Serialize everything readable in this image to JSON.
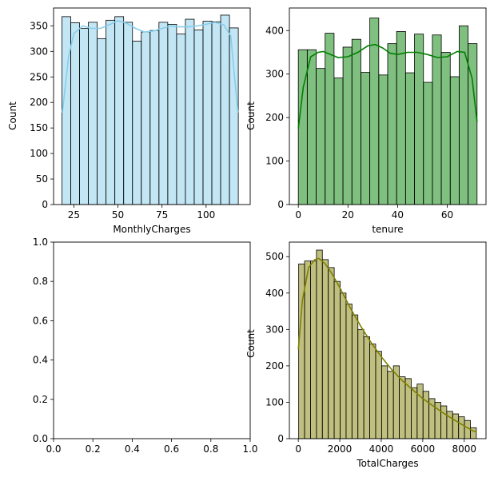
{
  "chart_data": [
    {
      "type": "histogram",
      "position": "top-left",
      "xlabel": "MonthlyCharges",
      "ylabel": "Count",
      "xlim": [
        13.5,
        125
      ],
      "ylim": [
        0,
        385
      ],
      "xticks": [
        25,
        50,
        75,
        100
      ],
      "yticks": [
        0,
        50,
        100,
        150,
        200,
        250,
        300,
        350
      ],
      "bin_start": 18.25,
      "bin_width": 5.0,
      "counts": [
        368,
        356,
        345,
        357,
        325,
        361,
        368,
        357,
        320,
        338,
        341,
        357,
        353,
        334,
        363,
        342,
        359,
        358,
        371,
        346
      ],
      "kde": [
        [
          18.5,
          180
        ],
        [
          22,
          290
        ],
        [
          25,
          335
        ],
        [
          30,
          350
        ],
        [
          35,
          345
        ],
        [
          40,
          345
        ],
        [
          45,
          352
        ],
        [
          50,
          360
        ],
        [
          55,
          355
        ],
        [
          60,
          345
        ],
        [
          65,
          338
        ],
        [
          70,
          340
        ],
        [
          75,
          345
        ],
        [
          80,
          350
        ],
        [
          85,
          348
        ],
        [
          90,
          348
        ],
        [
          95,
          350
        ],
        [
          100,
          353
        ],
        [
          105,
          357
        ],
        [
          110,
          352
        ],
        [
          114,
          330
        ],
        [
          118,
          180
        ]
      ],
      "fill_color": "#87ceeb",
      "line_color": "#87ceeb"
    },
    {
      "type": "histogram",
      "position": "top-right",
      "xlabel": "tenure",
      "ylabel": "Count",
      "xlim": [
        -3.6,
        75.6
      ],
      "ylim": [
        0,
        452
      ],
      "xticks": [
        0,
        20,
        40,
        60
      ],
      "yticks": [
        0,
        100,
        200,
        300,
        400
      ],
      "bin_start": 0,
      "bin_width": 3.6,
      "counts": [
        356,
        356,
        313,
        394,
        291,
        362,
        380,
        304,
        429,
        298,
        370,
        398,
        303,
        392,
        281,
        390,
        350,
        294,
        411,
        370
      ],
      "kde": [
        [
          0,
          175
        ],
        [
          2,
          270
        ],
        [
          5,
          340
        ],
        [
          8,
          350
        ],
        [
          10,
          352
        ],
        [
          13,
          345
        ],
        [
          16,
          338
        ],
        [
          20,
          340
        ],
        [
          24,
          350
        ],
        [
          28,
          365
        ],
        [
          31,
          368
        ],
        [
          34,
          360
        ],
        [
          37,
          348
        ],
        [
          40,
          345
        ],
        [
          44,
          350
        ],
        [
          48,
          350
        ],
        [
          52,
          345
        ],
        [
          56,
          338
        ],
        [
          60,
          340
        ],
        [
          64,
          352
        ],
        [
          67,
          350
        ],
        [
          70,
          290
        ],
        [
          72,
          190
        ]
      ],
      "fill_color": "#008000",
      "line_color": "#008000"
    },
    {
      "type": "empty",
      "position": "bottom-left",
      "xlim": [
        0,
        1
      ],
      "ylim": [
        0,
        1
      ],
      "xticks": [
        "0.0",
        "0.2",
        "0.4",
        "0.6",
        "0.8",
        "1.0"
      ],
      "yticks": [
        "0.0",
        "0.2",
        "0.4",
        "0.6",
        "0.8",
        "1.0"
      ]
    },
    {
      "type": "histogram",
      "position": "bottom-right",
      "xlabel": "TotalCharges",
      "ylabel": "Count",
      "xlim": [
        -430,
        9050
      ],
      "ylim": [
        0,
        540
      ],
      "xticks": [
        0,
        2000,
        4000,
        6000,
        8000
      ],
      "yticks": [
        0,
        100,
        200,
        300,
        400,
        500
      ],
      "bin_start": 18.8,
      "bin_width": 285.5,
      "counts": [
        480,
        488,
        488,
        518,
        492,
        470,
        432,
        400,
        370,
        340,
        300,
        280,
        260,
        240,
        200,
        185,
        200,
        170,
        165,
        140,
        150,
        130,
        110,
        100,
        90,
        75,
        68,
        60,
        50,
        30
      ],
      "kde": [
        [
          0,
          245
        ],
        [
          200,
          380
        ],
        [
          500,
          470
        ],
        [
          800,
          492
        ],
        [
          1000,
          495
        ],
        [
          1300,
          480
        ],
        [
          1600,
          455
        ],
        [
          2000,
          415
        ],
        [
          2500,
          360
        ],
        [
          3000,
          310
        ],
        [
          3500,
          265
        ],
        [
          4000,
          225
        ],
        [
          4500,
          190
        ],
        [
          5000,
          160
        ],
        [
          5500,
          135
        ],
        [
          6000,
          110
        ],
        [
          6500,
          90
        ],
        [
          7000,
          70
        ],
        [
          7500,
          52
        ],
        [
          8000,
          35
        ],
        [
          8400,
          22
        ],
        [
          8600,
          18
        ]
      ],
      "fill_color": "#808000",
      "line_color": "#808000"
    }
  ]
}
